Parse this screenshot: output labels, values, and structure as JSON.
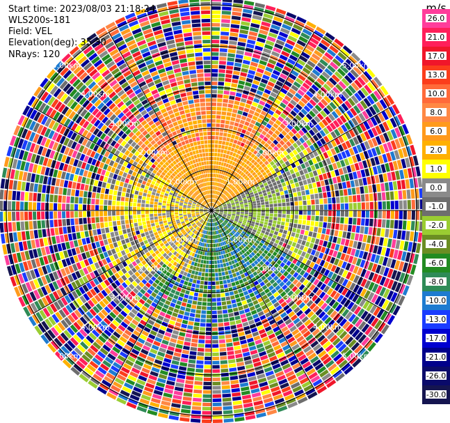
{
  "header": {
    "start_time": "Start time: 2023/08/03 21:18:24",
    "instrument": "WLS200s-181",
    "field": "Field: VEL",
    "elevation": "Elevation(deg): 35.30",
    "nrays": "NRays: 120"
  },
  "ppi": {
    "ring_labels": [
      {
        "label": "1.00km"
      },
      {
        "label": "2.00km"
      },
      {
        "label": "3.00km"
      },
      {
        "label": "4.00km"
      },
      {
        "label": "5.00km"
      }
    ],
    "n_rays": 120
  },
  "colorbar": {
    "unit": "m/s",
    "levels": [
      "26.0",
      "21.0",
      "17.0",
      "13.0",
      "10.0",
      "8.0",
      "6.0",
      "2.0",
      "1.0",
      "0.0",
      "-1.0",
      "-2.0",
      "-4.0",
      "-6.0",
      "-8.0",
      "-10.0",
      "-13.0",
      "-17.0",
      "-21.0",
      "-26.0",
      "-30.0"
    ],
    "colors": [
      "#ff3d9b",
      "#ff1f5a",
      "#f0162a",
      "#fb3d1c",
      "#ff6a3a",
      "#ff8844",
      "#ff9a1c",
      "#ffb000",
      "#ffff00",
      "#8a8a8a",
      "#6e6e6e",
      "#9acd32",
      "#6b8e23",
      "#228b22",
      "#2e8b57",
      "#1e7bd0",
      "#1a3cff",
      "#0000d0",
      "#00008b",
      "#0a0a6a",
      "#151550"
    ]
  }
}
